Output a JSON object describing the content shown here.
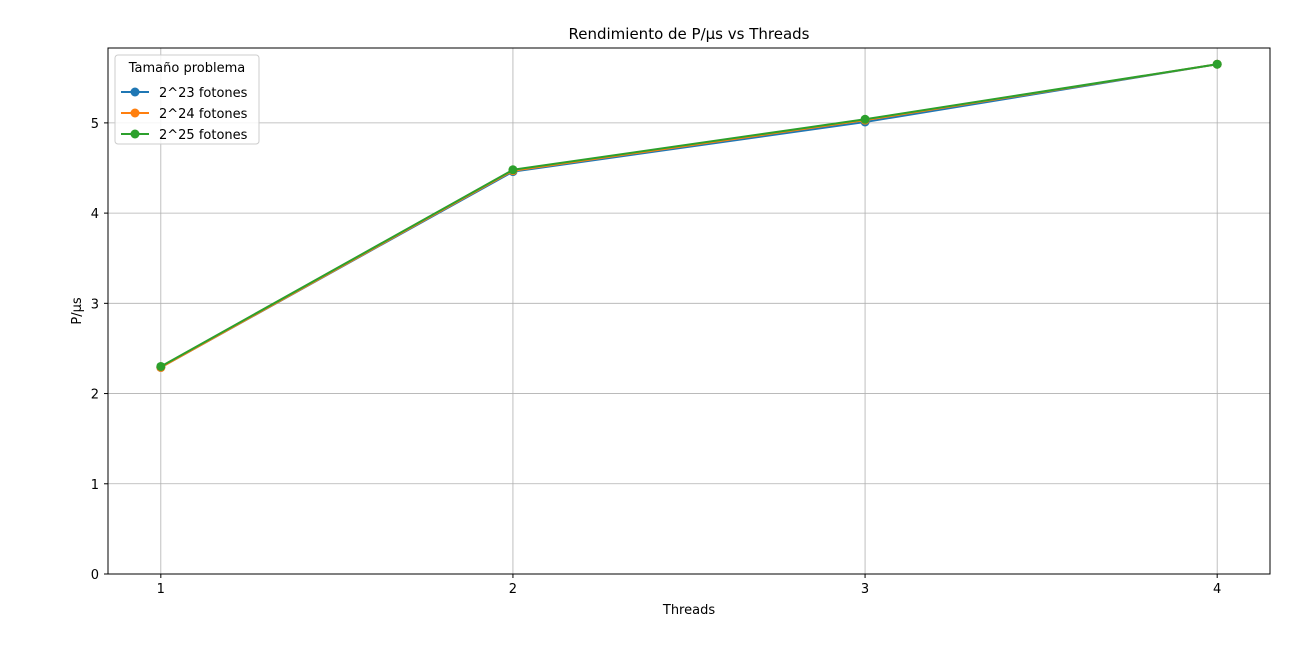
{
  "chart_data": {
    "type": "line",
    "title": "Rendimiento de P/µs vs Threads",
    "xlabel": "Threads",
    "ylabel": "P/µs",
    "x": [
      1,
      2,
      3,
      4
    ],
    "xticks": [
      "1",
      "2",
      "3",
      "4"
    ],
    "yticks": [
      "0",
      "1",
      "2",
      "3",
      "4",
      "5"
    ],
    "ylim": [
      0,
      5.83
    ],
    "xlim": [
      0.85,
      4.15
    ],
    "grid": true,
    "legend": {
      "title": "Tamaño problema",
      "placement": "top-left"
    },
    "series": [
      {
        "name": "2^23 fotones",
        "color": "#1f77b4",
        "values": [
          2.29,
          4.46,
          5.01,
          5.65
        ]
      },
      {
        "name": "2^24 fotones",
        "color": "#ff7f0e",
        "values": [
          2.29,
          4.47,
          5.03,
          5.65
        ]
      },
      {
        "name": "2^25 fotones",
        "color": "#2ca02c",
        "values": [
          2.3,
          4.48,
          5.04,
          5.65
        ]
      }
    ]
  }
}
